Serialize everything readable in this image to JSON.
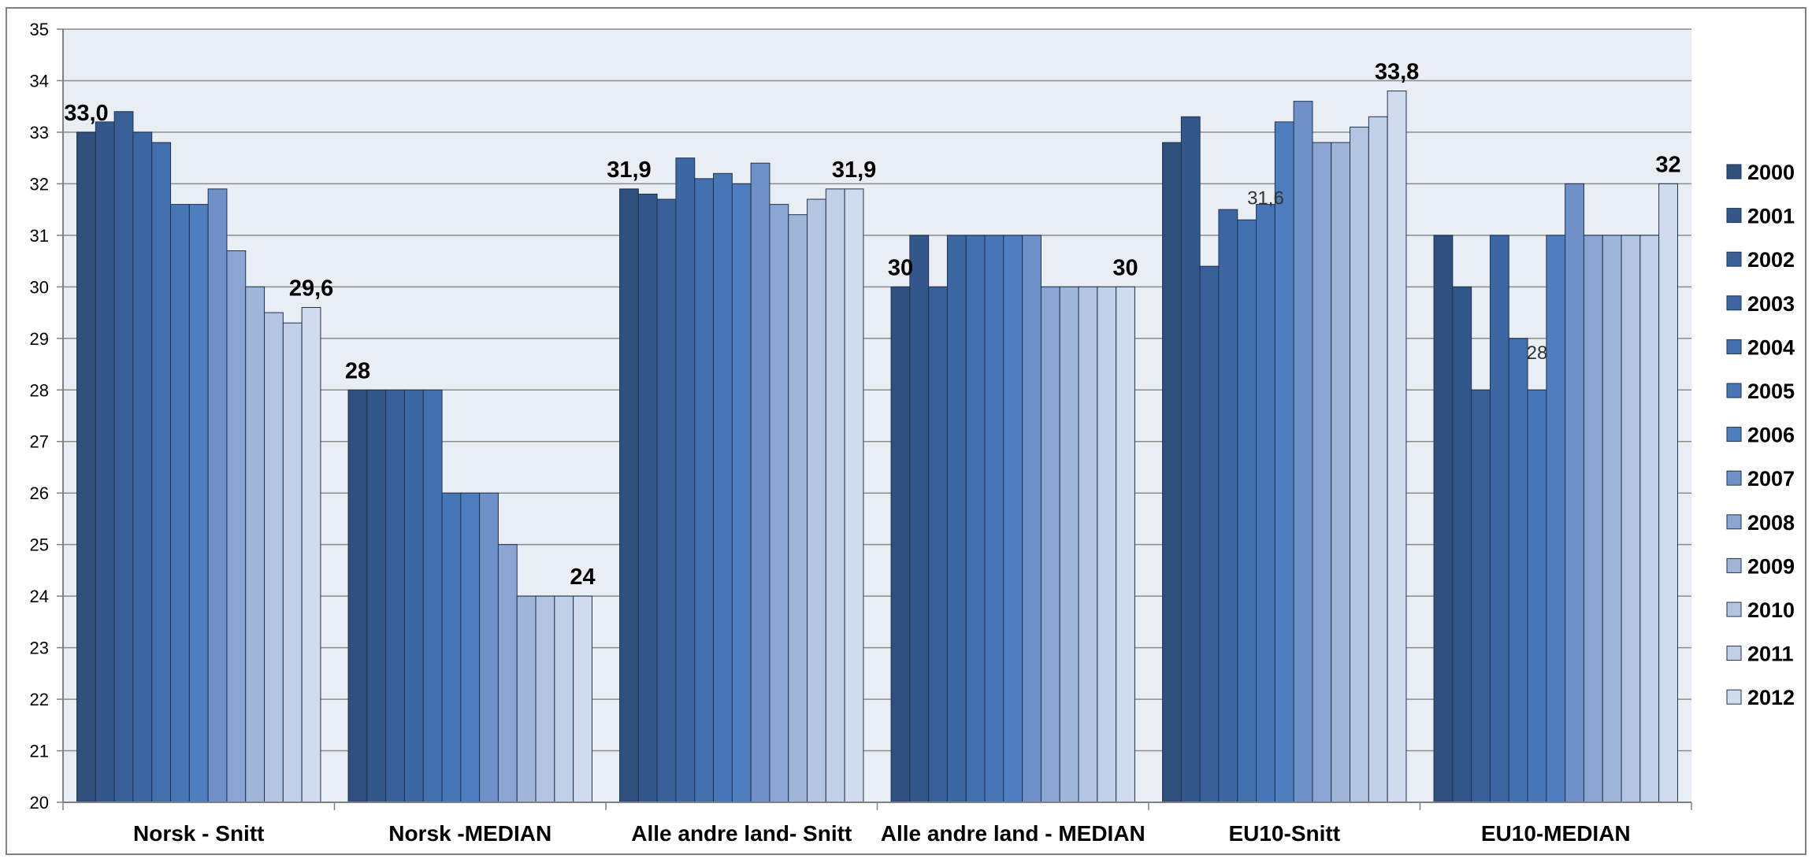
{
  "chart_data": {
    "type": "bar",
    "title": "",
    "xlabel": "",
    "ylabel": "",
    "ylim": [
      20,
      35
    ],
    "yticks": [
      20,
      21,
      22,
      23,
      24,
      25,
      26,
      27,
      28,
      29,
      30,
      31,
      32,
      33,
      34,
      35
    ],
    "grid": true,
    "legend_position": "right",
    "categories": [
      "Norsk - Snitt",
      "Norsk -MEDIAN",
      "Alle andre land- Snitt",
      "Alle andre land - MEDIAN",
      "EU10-Snitt",
      "EU10-MEDIAN"
    ],
    "series": [
      {
        "name": "2000",
        "color": "#2f4f7c",
        "values": [
          33.0,
          28,
          31.9,
          30,
          32.8,
          31
        ]
      },
      {
        "name": "2001",
        "color": "#33578a",
        "values": [
          33.2,
          28,
          31.8,
          31,
          33.3,
          30
        ]
      },
      {
        "name": "2002",
        "color": "#385f97",
        "values": [
          33.4,
          28,
          31.7,
          30,
          30.4,
          28
        ]
      },
      {
        "name": "2003",
        "color": "#3d67a3",
        "values": [
          33.0,
          28,
          32.5,
          31,
          31.5,
          31
        ]
      },
      {
        "name": "2004",
        "color": "#426fae",
        "values": [
          32.8,
          28,
          32.1,
          31,
          31.3,
          29
        ]
      },
      {
        "name": "2005",
        "color": "#4776b7",
        "values": [
          31.6,
          26,
          32.2,
          31,
          31.6,
          28
        ]
      },
      {
        "name": "2006",
        "color": "#4f7ebe",
        "values": [
          31.6,
          26,
          32.0,
          31,
          33.2,
          31
        ]
      },
      {
        "name": "2007",
        "color": "#6f91c8",
        "values": [
          31.9,
          26,
          32.4,
          31,
          33.6,
          32
        ]
      },
      {
        "name": "2008",
        "color": "#8aa5d1",
        "values": [
          30.7,
          25,
          31.6,
          30,
          32.8,
          31
        ]
      },
      {
        "name": "2009",
        "color": "#a0b6d9",
        "values": [
          30.0,
          24,
          31.4,
          30,
          32.8,
          31
        ]
      },
      {
        "name": "2010",
        "color": "#b3c5e1",
        "values": [
          29.5,
          24,
          31.7,
          30,
          33.1,
          31
        ]
      },
      {
        "name": "2011",
        "color": "#c2d0e7",
        "values": [
          29.3,
          24,
          31.9,
          30,
          33.3,
          31
        ]
      },
      {
        "name": "2012",
        "color": "#d0dcee",
        "values": [
          29.6,
          24,
          31.9,
          30,
          33.8,
          32
        ]
      }
    ],
    "annotations": [
      {
        "text": "33,0",
        "category": 0,
        "series": 0,
        "style": "bold"
      },
      {
        "text": "29,6",
        "category": 0,
        "series": 12,
        "style": "bold"
      },
      {
        "text": "28",
        "category": 1,
        "series": 0,
        "style": "bold"
      },
      {
        "text": "24",
        "category": 1,
        "series": 12,
        "style": "bold"
      },
      {
        "text": "31,9",
        "category": 2,
        "series": 0,
        "style": "bold"
      },
      {
        "text": "31,9",
        "category": 2,
        "series": 12,
        "style": "bold"
      },
      {
        "text": "30",
        "category": 3,
        "series": 0,
        "style": "bold"
      },
      {
        "text": "30",
        "category": 3,
        "series": 12,
        "style": "bold"
      },
      {
        "text": "31,6",
        "category": 4,
        "series": 5,
        "style": "small",
        "y": 31.6
      },
      {
        "text": "33,8",
        "category": 4,
        "series": 12,
        "style": "bold"
      },
      {
        "text": "28",
        "category": 5,
        "series": 5,
        "style": "small",
        "y": 28.6
      },
      {
        "text": "32",
        "category": 5,
        "series": 12,
        "style": "bold"
      }
    ],
    "colors": {
      "plot_background": "#e9edf4",
      "gridline": "#8c8c8c",
      "bar_stroke": "#1e3350"
    }
  }
}
